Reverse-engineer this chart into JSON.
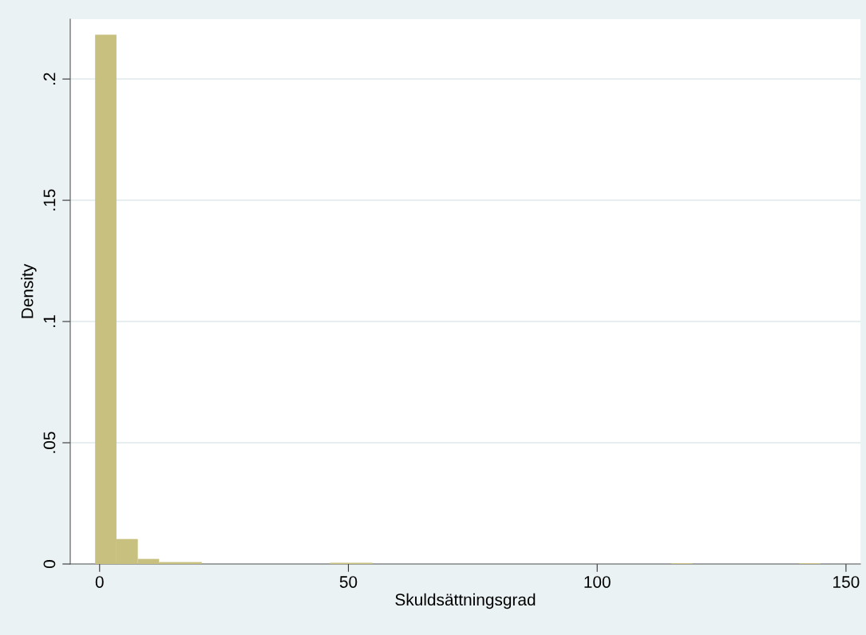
{
  "chart_data": {
    "type": "histogram",
    "xlabel": "Skuldsättningsgrad",
    "ylabel": "Density",
    "bins": [
      -0.9,
      3.39,
      7.68,
      11.96,
      16.25,
      20.54,
      24.83,
      29.12,
      33.4,
      37.69,
      41.98,
      46.27,
      50.56,
      54.84,
      59.13,
      63.42,
      67.71,
      72.0,
      76.28,
      80.57,
      84.86,
      89.15,
      93.44,
      97.72,
      102.01,
      106.3,
      110.59,
      114.88,
      119.16,
      123.45,
      127.74,
      132.03,
      136.32,
      140.6,
      144.89
    ],
    "values": [
      0.2183,
      0.0103,
      0.0021,
      0.0008,
      0.0008,
      0,
      0,
      0,
      0,
      0,
      0,
      0.0005,
      0.0005,
      0,
      0,
      0,
      0,
      0,
      0,
      0,
      0,
      0,
      0,
      0,
      0,
      0,
      0,
      0.0003,
      0,
      0,
      0,
      0,
      0,
      0.0003
    ],
    "color": "#c8c07e",
    "xlim": [
      -5.9,
      152.9
    ],
    "ylim": [
      0,
      0.2247
    ],
    "xticks": [
      0,
      50,
      100,
      150
    ],
    "yticks": [
      0,
      {
        "value": 0.05,
        "label": ".05"
      },
      {
        "value": 0.1,
        "label": ".1"
      },
      {
        "value": 0.15,
        "label": ".15"
      },
      {
        "value": 0.2,
        "label": ".2"
      }
    ],
    "grid": "y"
  }
}
